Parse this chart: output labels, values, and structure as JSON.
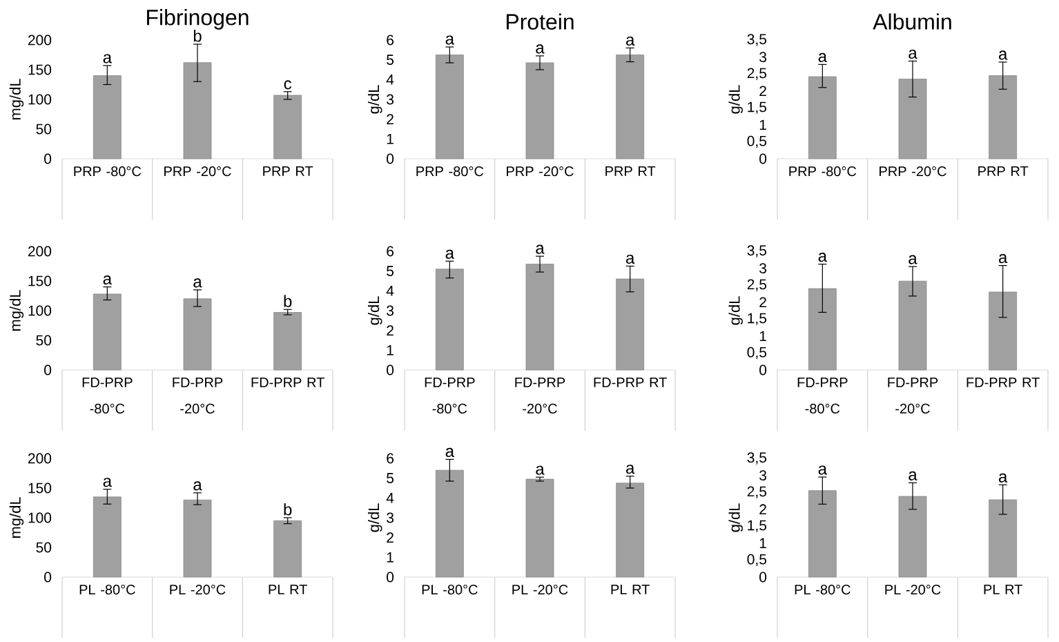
{
  "chart_data": [
    {
      "type": "bar",
      "title": "Fibrinogen",
      "ylabel": "mg/dL",
      "categories": [
        "PRP -80°C",
        "PRP -20°C",
        "PRP RT"
      ],
      "values": [
        140,
        162,
        107
      ],
      "errors": [
        [
          125,
          157
        ],
        [
          130,
          193
        ],
        [
          100,
          113
        ]
      ],
      "value_labels": [
        "a",
        "b",
        "c"
      ],
      "color": "#a0a0a0",
      "ylim": [
        0,
        200
      ],
      "yticks": [
        0,
        50,
        100,
        150,
        200
      ]
    },
    {
      "type": "bar",
      "title": "Protein",
      "ylabel": "g/dL",
      "categories": [
        "PRP -80°C",
        "PRP -20°C",
        "PRP RT"
      ],
      "values": [
        5.25,
        4.85,
        5.25
      ],
      "errors": [
        [
          4.85,
          5.65
        ],
        [
          4.5,
          5.2
        ],
        [
          4.9,
          5.6
        ]
      ],
      "value_labels": [
        "a",
        "a",
        "a"
      ],
      "color": "#a0a0a0",
      "ylim": [
        0,
        6
      ],
      "yticks": [
        0,
        1,
        2,
        3,
        4,
        5,
        6
      ]
    },
    {
      "type": "bar",
      "title": "Albumin",
      "ylabel": "g/dL",
      "categories": [
        "PRP -80°C",
        "PRP -20°C",
        "PRP RT"
      ],
      "values": [
        2.42,
        2.35,
        2.45
      ],
      "errors": [
        [
          2.1,
          2.78
        ],
        [
          1.82,
          2.88
        ],
        [
          2.05,
          2.85
        ]
      ],
      "value_labels": [
        "a",
        "a",
        "a"
      ],
      "color": "#a0a0a0",
      "ylim": [
        0,
        3.5
      ],
      "yticks": [
        0,
        {
          "value": 0.5,
          "label": "0,5"
        },
        1,
        {
          "value": 1.5,
          "label": "1,5"
        },
        2,
        {
          "value": 2.5,
          "label": "2,5"
        },
        3,
        {
          "value": 3.5,
          "label": "3,5"
        }
      ]
    },
    {
      "type": "bar",
      "ylabel": "mg/dL",
      "categories": [
        "FD-PRP -80°C",
        "FD-PRP -20°C",
        "FD-PRP RT"
      ],
      "values": [
        128,
        120,
        97
      ],
      "errors": [
        [
          118,
          140
        ],
        [
          107,
          135
        ],
        [
          93,
          102
        ]
      ],
      "value_labels": [
        "a",
        "a",
        "b"
      ],
      "color": "#a0a0a0",
      "ylim": [
        0,
        200
      ],
      "yticks": [
        0,
        50,
        100,
        150,
        200
      ]
    },
    {
      "type": "bar",
      "ylabel": "g/dL",
      "categories": [
        "FD-PRP -80°C",
        "FD-PRP -20°C",
        "FD-PRP RT"
      ],
      "values": [
        5.1,
        5.35,
        4.6
      ],
      "errors": [
        [
          4.65,
          5.5
        ],
        [
          4.95,
          5.75
        ],
        [
          3.95,
          5.25
        ]
      ],
      "value_labels": [
        "a",
        "a",
        "a"
      ],
      "color": "#a0a0a0",
      "ylim": [
        0,
        6
      ],
      "yticks": [
        0,
        1,
        2,
        3,
        4,
        5,
        6
      ]
    },
    {
      "type": "bar",
      "ylabel": "g/dL",
      "categories": [
        "FD-PRP -80°C",
        "FD-PRP -20°C",
        "FD-PRP RT"
      ],
      "values": [
        2.4,
        2.62,
        2.3
      ],
      "errors": [
        [
          1.7,
          3.12
        ],
        [
          2.18,
          3.05
        ],
        [
          1.55,
          3.08
        ]
      ],
      "value_labels": [
        "a",
        "a",
        "a"
      ],
      "color": "#a0a0a0",
      "ylim": [
        0,
        3.5
      ],
      "yticks": [
        0,
        {
          "value": 0.5,
          "label": "0,5"
        },
        1,
        {
          "value": 1.5,
          "label": "1,5"
        },
        2,
        {
          "value": 2.5,
          "label": "2,5"
        },
        3,
        {
          "value": 3.5,
          "label": "3,5"
        }
      ]
    },
    {
      "type": "bar",
      "ylabel": "mg/dL",
      "categories": [
        "PL -80°C",
        "PL -20°C",
        "PL RT"
      ],
      "values": [
        135,
        130,
        95
      ],
      "errors": [
        [
          123,
          148
        ],
        [
          122,
          142
        ],
        [
          90,
          100
        ]
      ],
      "value_labels": [
        "a",
        "a",
        "b"
      ],
      "color": "#a0a0a0",
      "ylim": [
        0,
        200
      ],
      "yticks": [
        0,
        50,
        100,
        150,
        200
      ]
    },
    {
      "type": "bar",
      "ylabel": "g/dL",
      "categories": [
        "PL -80°C",
        "PL -20°C",
        "PL RT"
      ],
      "values": [
        5.4,
        4.95,
        4.75
      ],
      "errors": [
        [
          4.85,
          5.95
        ],
        [
          4.85,
          5.05
        ],
        [
          4.5,
          5.1
        ]
      ],
      "value_labels": [
        "a",
        "a",
        "a"
      ],
      "color": "#a0a0a0",
      "ylim": [
        0,
        6
      ],
      "yticks": [
        0,
        1,
        2,
        3,
        4,
        5,
        6
      ]
    },
    {
      "type": "bar",
      "ylabel": "g/dL",
      "categories": [
        "PL -80°C",
        "PL -20°C",
        "PL RT"
      ],
      "values": [
        2.55,
        2.38,
        2.28
      ],
      "errors": [
        [
          2.15,
          2.95
        ],
        [
          2.0,
          2.78
        ],
        [
          1.85,
          2.72
        ]
      ],
      "value_labels": [
        "a",
        "a",
        "a"
      ],
      "color": "#a0a0a0",
      "ylim": [
        0,
        3.5
      ],
      "yticks": [
        0,
        {
          "value": 0.5,
          "label": "0,5"
        },
        1,
        {
          "value": 1.5,
          "label": "1,5"
        },
        2,
        {
          "value": 2.5,
          "label": "2,5"
        },
        3,
        {
          "value": 3.5,
          "label": "3,5"
        }
      ]
    }
  ]
}
